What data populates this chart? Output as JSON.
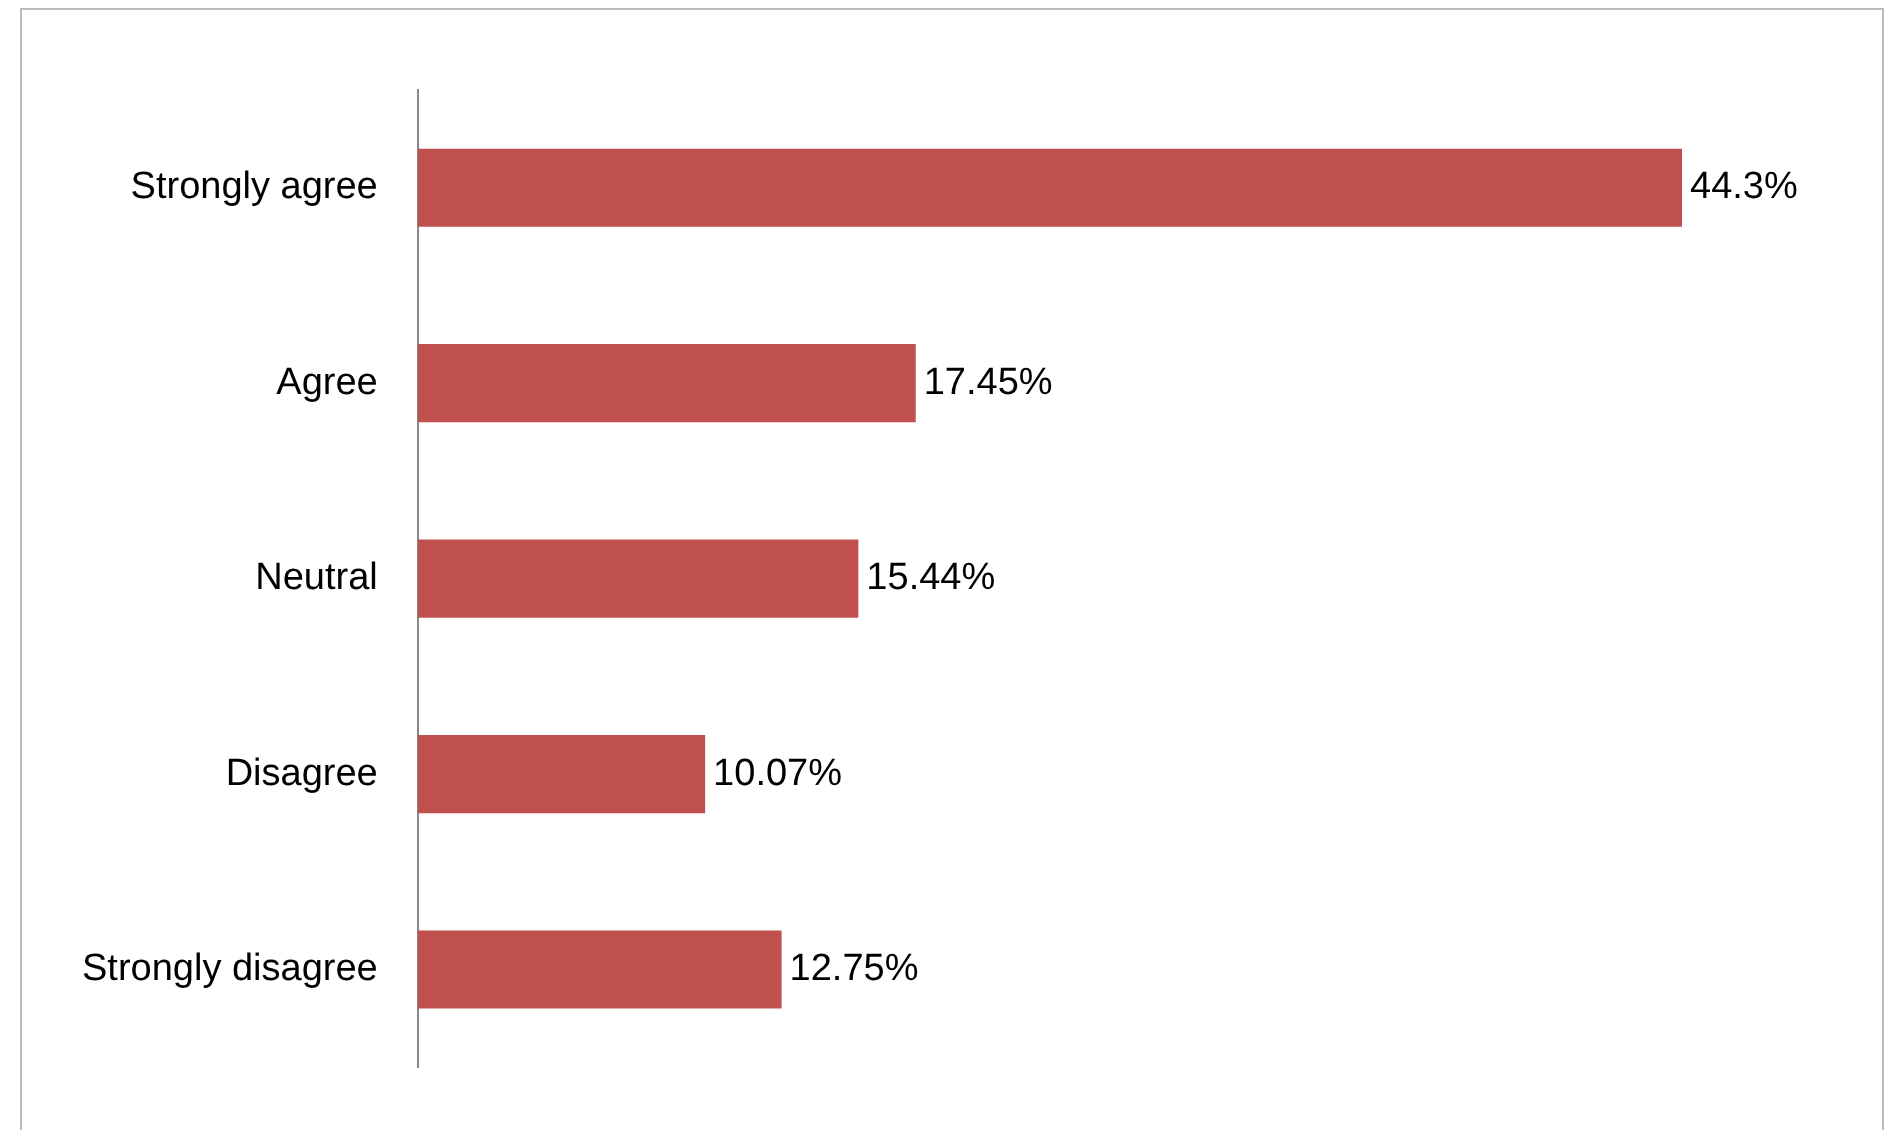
{
  "chart_data": {
    "type": "bar",
    "orientation": "horizontal",
    "categories": [
      "Strongly agree",
      "Agree",
      "Neutral",
      "Disagree",
      "Strongly disagree"
    ],
    "values": [
      44.3,
      17.45,
      15.44,
      10.07,
      12.75
    ],
    "value_labels": [
      "44.3%",
      "17.45%",
      "15.44%",
      "10.07%",
      "12.75%"
    ],
    "color": "#c0504d",
    "legend": false
  }
}
